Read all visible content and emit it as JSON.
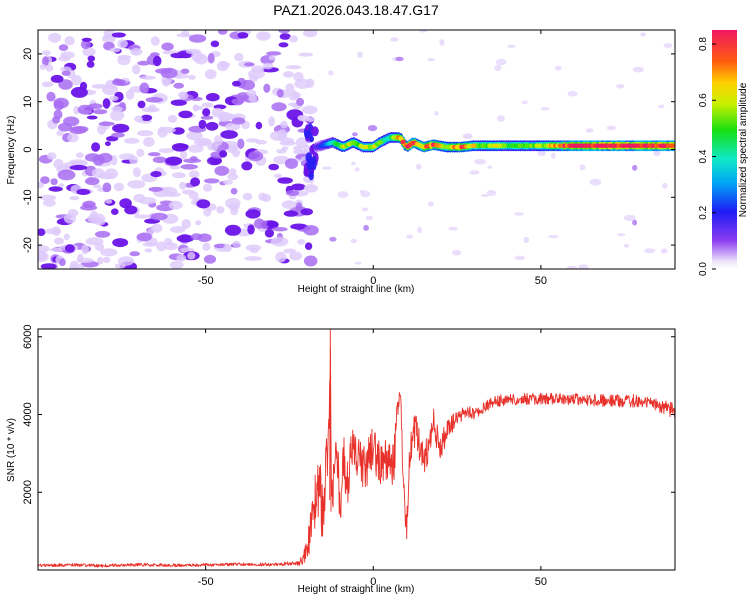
{
  "chart_data": [
    {
      "type": "heatmap",
      "title": "PAZ1.2026.043.18.47.G17",
      "xlabel": "Height of straight line (km)",
      "ylabel": "Frequency (Hz)",
      "xlim": [
        -100,
        90
      ],
      "ylim": [
        -25,
        25
      ],
      "xticks": [
        -50,
        0,
        50
      ],
      "yticks": [
        -20,
        -10,
        0,
        10,
        20
      ],
      "x_tick_labels": [
        "-50",
        "0",
        "50"
      ],
      "y_tick_labels": [
        "-20",
        "-10",
        "0",
        "10",
        "20"
      ],
      "colorbar": {
        "label": "Normalized spectral amplitude",
        "range": [
          0,
          0.85
        ],
        "ticks": [
          "0.0",
          "0.2",
          "0.4",
          "0.6",
          "0.8"
        ],
        "tick_values": [
          0.0,
          0.2,
          0.4,
          0.6,
          0.8
        ]
      },
      "noise_region": {
        "x_from": -100,
        "x_to": -20,
        "freq_from": -25,
        "freq_to": 25,
        "amplitude": 0.05
      },
      "transition": {
        "x_from": -20,
        "x_to": -17,
        "freq_from": -8,
        "freq_to": 5,
        "amplitude": 0.1
      },
      "signal_ridge": {
        "x": [
          -17,
          -12,
          -9,
          -6,
          -3,
          0,
          2,
          5,
          8,
          10,
          12,
          15,
          18,
          22,
          26,
          30,
          40,
          50,
          60,
          70,
          80,
          90
        ],
        "freq": [
          0.5,
          1.5,
          0.5,
          1.5,
          0.5,
          0.5,
          1.5,
          2.5,
          2.5,
          0.5,
          1.5,
          0.5,
          1.0,
          0.5,
          0.5,
          0.8,
          0.8,
          0.8,
          0.8,
          0.8,
          0.8,
          0.8
        ],
        "peak_amplitude": [
          0.15,
          0.4,
          0.6,
          0.5,
          0.55,
          0.6,
          0.5,
          0.45,
          0.7,
          0.8,
          0.75,
          0.7,
          0.8,
          0.6,
          0.75,
          0.6,
          0.55,
          0.55,
          0.85,
          0.85,
          0.85,
          0.85
        ]
      }
    },
    {
      "type": "line",
      "title": "",
      "xlabel": "Height of straight line (km)",
      "ylabel": "SNR (10 * v/v)",
      "xlim": [
        -100,
        90
      ],
      "ylim": [
        0,
        6200
      ],
      "xticks": [
        -50,
        0,
        50
      ],
      "yticks": [
        2000,
        4000,
        6000
      ],
      "x_tick_labels": [
        "-50",
        "0",
        "50"
      ],
      "y_tick_labels": [
        "2000",
        "4000",
        "6000"
      ],
      "color": "#e8312a",
      "series": [
        {
          "name": "SNR",
          "x": [
            -100,
            -90,
            -80,
            -70,
            -60,
            -50,
            -40,
            -30,
            -22,
            -20,
            -18,
            -16,
            -15,
            -14,
            -13,
            -12.8,
            -12.5,
            -11,
            -10,
            -9,
            -8,
            -6,
            -4,
            -2,
            0,
            2,
            4,
            6,
            8,
            9,
            9.5,
            10,
            11,
            12,
            13,
            15,
            18,
            20,
            22,
            25,
            28,
            30,
            35,
            40,
            50,
            60,
            70,
            80,
            90
          ],
          "y": [
            120,
            130,
            110,
            140,
            120,
            130,
            150,
            140,
            180,
            400,
            1500,
            2400,
            1200,
            2700,
            4200,
            6200,
            1600,
            3400,
            1500,
            2900,
            2000,
            3300,
            2800,
            2600,
            3300,
            2600,
            2900,
            2700,
            4700,
            2200,
            1600,
            1100,
            3100,
            3600,
            3600,
            2700,
            3800,
            3100,
            3600,
            3900,
            4100,
            4000,
            4300,
            4400,
            4400,
            4400,
            4350,
            4350,
            4100
          ],
          "noise_amplitude": [
            40,
            40,
            40,
            40,
            40,
            40,
            40,
            40,
            60,
            300,
            800,
            900,
            700,
            900,
            900,
            0,
            700,
            800,
            700,
            800,
            700,
            700,
            600,
            600,
            600,
            600,
            600,
            600,
            500,
            500,
            400,
            400,
            500,
            500,
            450,
            450,
            400,
            350,
            300,
            200,
            150,
            150,
            150,
            150,
            150,
            150,
            160,
            170,
            200
          ]
        }
      ]
    }
  ]
}
